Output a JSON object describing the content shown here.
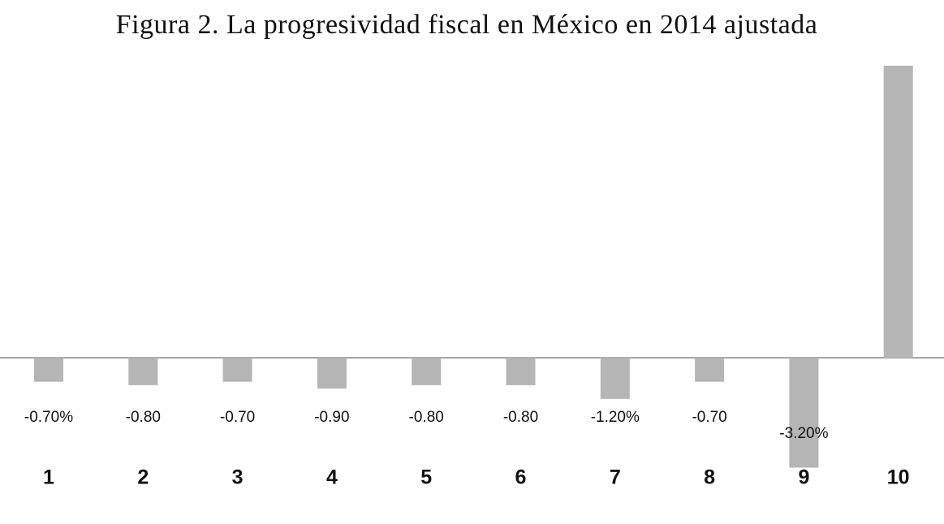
{
  "chart_data": {
    "type": "bar",
    "title": "Figura 2. La progresividad fiscal en México en 2014 ajustada",
    "categories": [
      "1",
      "2",
      "3",
      "4",
      "5",
      "6",
      "7",
      "8",
      "9",
      "10"
    ],
    "values": [
      -0.7,
      -0.8,
      -0.7,
      -0.9,
      -0.8,
      -0.8,
      -1.2,
      -0.7,
      -3.2,
      8.5
    ],
    "value_labels": [
      "-0.70%",
      "-0.80",
      "-0.70",
      "-0.90",
      "-0.80",
      "-0.80",
      "-1.20%",
      "-0.70",
      "-3.20%",
      null
    ],
    "color": "#b5b5b5"
  }
}
